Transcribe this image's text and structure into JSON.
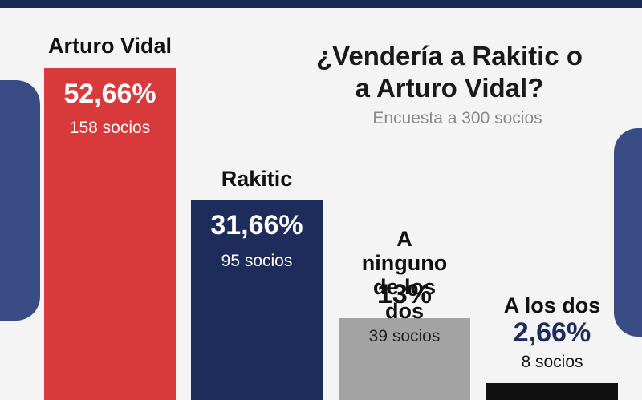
{
  "chart_data": {
    "type": "bar",
    "title": "¿Vendería a Rakitic o a Arturo Vidal?",
    "subtitle": "Encuesta a 300 socios",
    "categories": [
      "Arturo Vidal",
      "Rakitic",
      "A ninguno de los dos",
      "A los dos"
    ],
    "values": [
      52.66,
      31.66,
      13,
      2.66
    ],
    "value_labels": [
      "52,66%",
      "31,66%",
      "13%",
      "2,66%"
    ],
    "socios_labels": [
      "158 socios",
      "95 socios",
      "39 socios",
      "8 socios"
    ],
    "colors": [
      "#d8393b",
      "#1e2c5c",
      "#a3a3a3",
      "#111111"
    ]
  }
}
